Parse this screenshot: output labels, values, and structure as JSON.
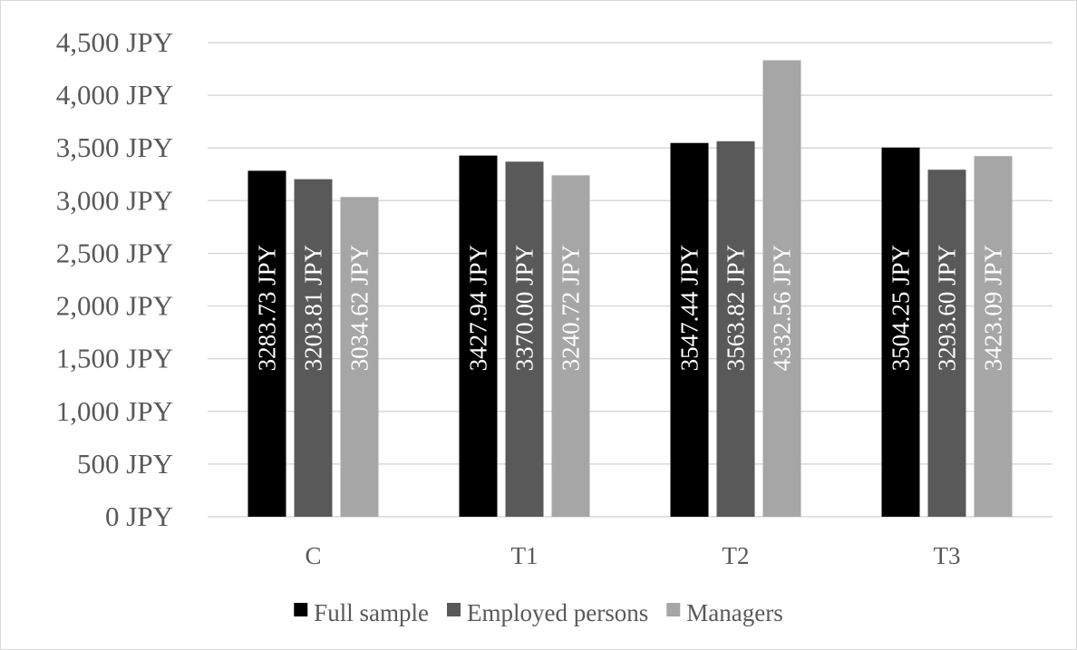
{
  "chart_data": {
    "type": "bar",
    "title": "",
    "xlabel": "",
    "ylabel": "",
    "categories": [
      "C",
      "T1",
      "T2",
      "T3"
    ],
    "ylim": [
      0,
      4500
    ],
    "y_ticks": [
      0,
      500,
      1000,
      1500,
      2000,
      2500,
      3000,
      3500,
      4000,
      4500
    ],
    "y_tick_labels": [
      "0 JPY",
      "500 JPY",
      "1,000 JPY",
      "1,500 JPY",
      "2,000 JPY",
      "2,500 JPY",
      "3,000 JPY",
      "3,500 JPY",
      "4,000 JPY",
      "4,500 JPY"
    ],
    "grid": true,
    "legend_position": "bottom",
    "series": [
      {
        "name": "Full sample",
        "color": "#000000",
        "values": [
          3283.73,
          3427.94,
          3547.44,
          3504.25
        ],
        "labels": [
          "3283.73 JPY",
          "3427.94 JPY",
          "3547.44 JPY",
          "3504.25 JPY"
        ]
      },
      {
        "name": "Employed persons",
        "color": "#595959",
        "values": [
          3203.81,
          3370.0,
          3563.82,
          3293.6
        ],
        "labels": [
          "3203.81 JPY",
          "3370.00 JPY",
          "3563.82 JPY",
          "3293.60 JPY"
        ]
      },
      {
        "name": "Managers",
        "color": "#a6a6a6",
        "values": [
          3034.62,
          3240.72,
          4332.56,
          3423.09
        ],
        "labels": [
          "3034.62 JPY",
          "3240.72 JPY",
          "4332.56 JPY",
          "3423.09 JPY"
        ]
      }
    ]
  }
}
